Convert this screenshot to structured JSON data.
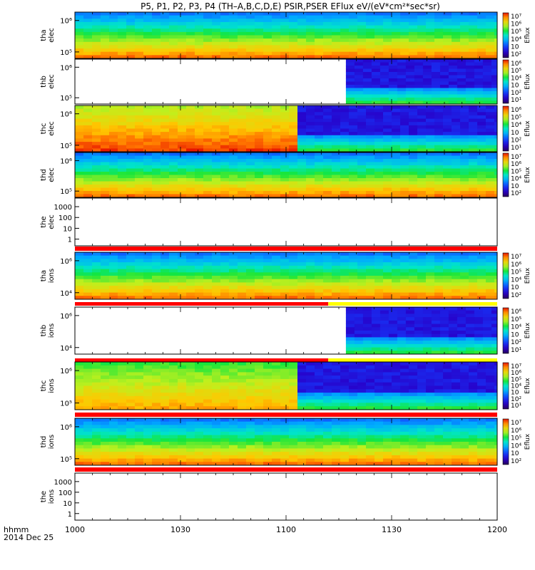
{
  "title": "P5, P1, P2, P3, P4 (TH–A,B,C,D,E) PSIR,PSER EFlux eV/(eV*cm²*sec*sr)",
  "x_axis": {
    "label_line1": "hhmm",
    "label_line2": "2014 Dec 25",
    "ticks": [
      "1000",
      "1030",
      "1100",
      "1130",
      "1200"
    ]
  },
  "colorbar_label": "Eflux",
  "chart_data": {
    "type": "heatmap",
    "x_range_minutes": [
      0,
      120
    ],
    "panels": [
      {
        "label1": "tha",
        "label2": "elec",
        "kind": "spec",
        "yticks": [
          "10⁶",
          "10⁵"
        ],
        "ylog": true,
        "colorbar": [
          "10⁷",
          "10⁶",
          "10⁵",
          "10⁴",
          "10⁳",
          "10²"
        ],
        "data_start_min": 0,
        "burst_start_min": null,
        "top_color": "blue",
        "mode_bar": null
      },
      {
        "label1": "thb",
        "label2": "elec",
        "kind": "spec",
        "yticks": [
          "10⁶",
          "10⁵"
        ],
        "ylog": true,
        "colorbar": [
          "10⁶",
          "10⁵",
          "10⁴",
          "10⁳",
          "10²",
          "10¹"
        ],
        "data_start_min": 77,
        "burst_start_min": 77,
        "top_color": "purple",
        "mode_bar": null
      },
      {
        "label1": "thc",
        "label2": "elec",
        "kind": "spec",
        "yticks": [
          "10⁶",
          "10⁵"
        ],
        "ylog": true,
        "colorbar": [
          "10⁶",
          "10⁵",
          "10⁴",
          "10⁳",
          "10²",
          "10¹"
        ],
        "data_start_min": 0,
        "burst_start_min": 61,
        "top_color": "yellow",
        "mode_bar": null
      },
      {
        "label1": "thd",
        "label2": "elec",
        "kind": "spec",
        "yticks": [
          "10⁶",
          "10⁵"
        ],
        "ylog": true,
        "colorbar": [
          "10⁷",
          "10⁶",
          "10⁵",
          "10⁴",
          "10⁳",
          "10²"
        ],
        "data_start_min": 0,
        "burst_start_min": null,
        "top_color": "blue",
        "mode_bar": null
      },
      {
        "label1": "the",
        "label2": "elec",
        "kind": "empty",
        "yticks": [
          "1000",
          "100",
          "10",
          "1"
        ],
        "ylog": true,
        "colorbar": null,
        "mode_bar": {
          "red_until_min": 120
        }
      },
      {
        "label1": "tha",
        "label2": "ions",
        "kind": "spec",
        "yticks": [
          "10⁶",
          "10⁴"
        ],
        "ylog": true,
        "colorbar": [
          "10⁷",
          "10⁶",
          "10⁵",
          "10⁴",
          "10⁳",
          "10²"
        ],
        "data_start_min": 0,
        "burst_start_min": null,
        "top_color": "blue",
        "mode_bar": {
          "red_until_min": 72
        }
      },
      {
        "label1": "thb",
        "label2": "ions",
        "kind": "spec",
        "yticks": [
          "10⁶",
          "10⁴"
        ],
        "ylog": true,
        "colorbar": [
          "10⁶",
          "10⁵",
          "10⁴",
          "10⁳",
          "10²",
          "10¹"
        ],
        "data_start_min": 77,
        "burst_start_min": 77,
        "top_color": "purple",
        "mode_bar": {
          "red_until_min": 72
        }
      },
      {
        "label1": "thc",
        "label2": "ions",
        "kind": "spec",
        "yticks": [
          "10⁶",
          "10⁵"
        ],
        "ylog": true,
        "colorbar": [
          "10⁷",
          "10⁶",
          "10⁵",
          "10⁴",
          "10⁳",
          "10²",
          "10¹"
        ],
        "data_start_min": 0,
        "burst_start_min": 61,
        "top_color": "green",
        "mode_bar": {
          "red_until_min": 120
        }
      },
      {
        "label1": "thd",
        "label2": "ions",
        "kind": "spec",
        "yticks": [
          "10⁶",
          "10⁵"
        ],
        "ylog": true,
        "colorbar": [
          "10⁷",
          "10⁶",
          "10⁵",
          "10⁴",
          "10⁳",
          "10²"
        ],
        "data_start_min": 0,
        "burst_start_min": null,
        "top_color": "blue",
        "mode_bar": {
          "red_until_min": 120
        }
      },
      {
        "label1": "the",
        "label2": "ions",
        "kind": "empty",
        "yticks": [
          "1000",
          "100",
          "10",
          "1"
        ],
        "ylog": true,
        "colorbar": null,
        "mode_bar": null
      }
    ]
  }
}
